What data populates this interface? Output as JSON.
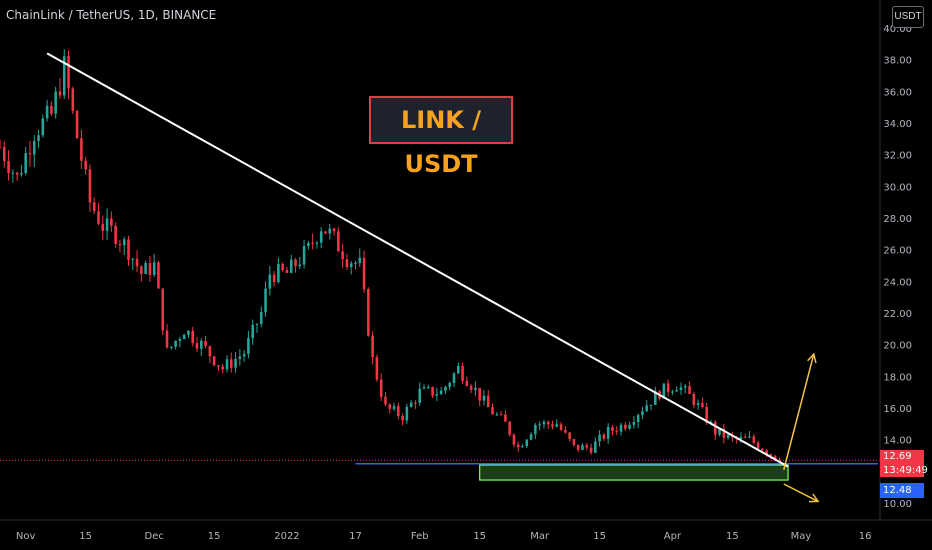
{
  "header": {
    "symbol_title": "ChainLink / TetherUS, 1D, BINANCE",
    "currency_button": "USDT"
  },
  "annotation": {
    "badge_text": "LINK / USDT"
  },
  "price_tags": {
    "last_price": "12.69",
    "countdown": "13:49:49",
    "support_price": "12.48"
  },
  "colors": {
    "background": "#000000",
    "up_candle": "#26a69a",
    "down_candle": "#f23645",
    "trendline": "#ffffff",
    "support_line": "#2962ff",
    "zone_fill": "#4caf50",
    "arrows": "#f6c244",
    "badge_text": "#f6a21e",
    "badge_border": "#e03e44"
  },
  "chart_data": {
    "type": "candlestick",
    "title": "ChainLink / TetherUS, 1D, BINANCE",
    "y_axis": {
      "ticks": [
        "10.00",
        "12.00",
        "14.00",
        "16.00",
        "18.00",
        "20.00",
        "22.00",
        "24.00",
        "26.00",
        "28.00",
        "30.00",
        "32.00",
        "34.00",
        "36.00",
        "38.00",
        "40.00"
      ],
      "ylim": [
        9.5,
        40.5
      ],
      "side": "right"
    },
    "x_axis": {
      "ticks": [
        "Nov",
        "15",
        "Dec",
        "15",
        "2022",
        "17",
        "Feb",
        "15",
        "Mar",
        "15",
        "Apr",
        "15",
        "May",
        "16"
      ],
      "tick_dates": [
        "2021-11-01",
        "2021-11-15",
        "2021-12-01",
        "2021-12-15",
        "2022-01-01",
        "2022-01-17",
        "2022-02-01",
        "2022-02-15",
        "2022-03-01",
        "2022-03-15",
        "2022-04-01",
        "2022-04-15",
        "2022-05-01",
        "2022-05-16"
      ],
      "range": [
        "2021-10-26",
        "2022-05-19"
      ]
    },
    "grid": false,
    "price_path": [
      [
        "2021-10-26",
        32.5
      ],
      [
        "2021-10-30",
        30.5
      ],
      [
        "2021-11-03",
        33.5
      ],
      [
        "2021-11-07",
        34.5
      ],
      [
        "2021-11-10",
        37.5
      ],
      [
        "2021-11-12",
        34.5
      ],
      [
        "2021-11-16",
        29.0
      ],
      [
        "2021-11-19",
        27.5
      ],
      [
        "2021-11-22",
        27.0
      ],
      [
        "2021-11-25",
        26.0
      ],
      [
        "2021-11-28",
        24.5
      ],
      [
        "2021-12-01",
        25.0
      ],
      [
        "2021-12-04",
        19.5
      ],
      [
        "2021-12-08",
        21.0
      ],
      [
        "2021-12-12",
        20.0
      ],
      [
        "2021-12-17",
        18.5
      ],
      [
        "2021-12-22",
        19.5
      ],
      [
        "2021-12-26",
        22.0
      ],
      [
        "2021-12-28",
        24.5
      ],
      [
        "2022-01-01",
        24.5
      ],
      [
        "2022-01-06",
        26.0
      ],
      [
        "2022-01-09",
        27.5
      ],
      [
        "2022-01-11",
        27.0
      ],
      [
        "2022-01-15",
        25.5
      ],
      [
        "2022-01-18",
        25.0
      ],
      [
        "2022-01-21",
        19.0
      ],
      [
        "2022-01-24",
        16.0
      ],
      [
        "2022-01-28",
        15.5
      ],
      [
        "2022-02-01",
        17.0
      ],
      [
        "2022-02-06",
        17.0
      ],
      [
        "2022-02-10",
        18.5
      ],
      [
        "2022-02-13",
        17.5
      ],
      [
        "2022-02-17",
        16.0
      ],
      [
        "2022-02-21",
        15.0
      ],
      [
        "2022-02-24",
        13.5
      ],
      [
        "2022-02-28",
        15.0
      ],
      [
        "2022-03-05",
        15.0
      ],
      [
        "2022-03-09",
        13.5
      ],
      [
        "2022-03-13",
        13.5
      ],
      [
        "2022-03-17",
        14.5
      ],
      [
        "2022-03-21",
        15.0
      ],
      [
        "2022-03-25",
        16.0
      ],
      [
        "2022-03-29",
        17.0
      ],
      [
        "2022-04-02",
        17.5
      ],
      [
        "2022-04-06",
        16.5
      ],
      [
        "2022-04-11",
        14.5
      ],
      [
        "2022-04-15",
        14.0
      ],
      [
        "2022-04-19",
        14.0
      ],
      [
        "2022-04-22",
        13.5
      ],
      [
        "2022-04-26",
        12.7
      ]
    ],
    "annotations": {
      "trendline": {
        "start": [
          "2021-11-06",
          38.4
        ],
        "end": [
          "2022-04-28",
          12.3
        ]
      },
      "support_line": {
        "start": [
          "2022-01-17",
          12.48
        ],
        "end": [
          "2022-05-19",
          12.48
        ]
      },
      "last_price_line": {
        "value": 12.69
      },
      "support_zone": {
        "from": [
          "2022-02-15",
          12.4
        ],
        "to": [
          "2022-04-28",
          11.45
        ]
      },
      "arrow_up": {
        "from": [
          "2022-04-27",
          12.1
        ],
        "to": [
          "2022-05-04",
          19.4
        ]
      },
      "arrow_down": {
        "from": [
          "2022-04-27",
          11.2
        ],
        "to": [
          "2022-05-05",
          10.1
        ]
      }
    }
  }
}
